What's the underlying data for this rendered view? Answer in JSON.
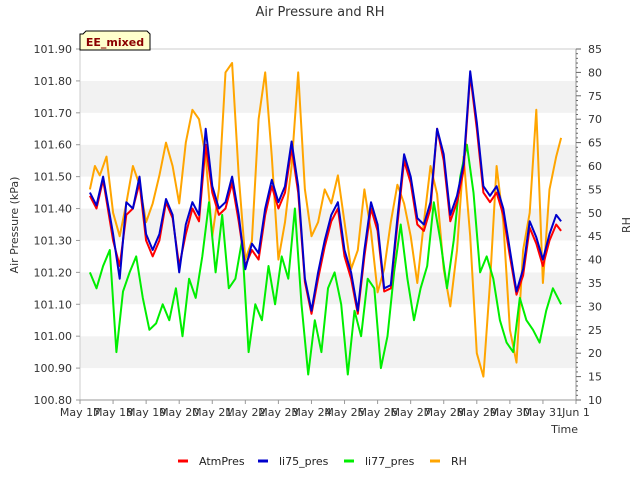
{
  "chart_data": {
    "type": "line",
    "title": "Air Pressure and RH",
    "xlabel": "Time",
    "ylabel": "Air Pressure (kPa)",
    "y2label": "RH",
    "badge": "EE_mixed",
    "xlim": [
      0,
      15
    ],
    "ylim": [
      100.8,
      101.9
    ],
    "y2lim": [
      10,
      85
    ],
    "x_ticks": [
      "May 17",
      "May 18",
      "May 19",
      "May 20",
      "May 21",
      "May 22",
      "May 23",
      "May 24",
      "May 25",
      "May 26",
      "May 27",
      "May 28",
      "May 29",
      "May 30",
      "May 31",
      "Jun 1"
    ],
    "y_ticks": [
      "100.80",
      "100.90",
      "101.00",
      "101.10",
      "101.20",
      "101.30",
      "101.40",
      "101.50",
      "101.60",
      "101.70",
      "101.80",
      "101.90"
    ],
    "y2_ticks": [
      "10",
      "15",
      "20",
      "25",
      "30",
      "35",
      "40",
      "45",
      "50",
      "55",
      "60",
      "65",
      "70",
      "75",
      "80",
      "85"
    ],
    "grid": "alternating horizontal bands",
    "legend_position": "bottom",
    "x_note": "x values are days after May 17 00:00",
    "series": [
      {
        "name": "AtmPres",
        "color": "#ff0000",
        "axis": "left",
        "x": [
          0.3,
          0.5,
          0.7,
          1.0,
          1.2,
          1.4,
          1.6,
          1.8,
          2.0,
          2.2,
          2.4,
          2.6,
          2.8,
          3.0,
          3.2,
          3.4,
          3.6,
          3.8,
          4.0,
          4.2,
          4.4,
          4.6,
          4.8,
          5.0,
          5.2,
          5.4,
          5.6,
          5.8,
          6.0,
          6.2,
          6.4,
          6.6,
          6.8,
          7.0,
          7.2,
          7.4,
          7.6,
          7.8,
          8.0,
          8.2,
          8.4,
          8.6,
          8.8,
          9.0,
          9.2,
          9.4,
          9.6,
          9.8,
          10.0,
          10.2,
          10.4,
          10.6,
          10.8,
          11.0,
          11.2,
          11.4,
          11.6,
          11.8,
          12.0,
          12.2,
          12.4,
          12.6,
          12.8,
          13.0,
          13.2,
          13.4,
          13.6,
          13.8,
          14.0,
          14.2,
          14.4,
          14.55
        ],
        "y": [
          101.44,
          101.4,
          101.49,
          101.3,
          101.22,
          101.38,
          101.4,
          101.48,
          101.3,
          101.25,
          101.3,
          101.42,
          101.37,
          101.22,
          101.32,
          101.4,
          101.36,
          101.6,
          101.45,
          101.38,
          101.4,
          101.48,
          101.36,
          101.22,
          101.27,
          101.24,
          101.38,
          101.47,
          101.4,
          101.45,
          101.59,
          101.45,
          101.17,
          101.07,
          101.18,
          101.28,
          101.36,
          101.4,
          101.25,
          101.18,
          101.07,
          101.25,
          101.4,
          101.33,
          101.14,
          101.15,
          101.35,
          101.55,
          101.48,
          101.35,
          101.33,
          101.4,
          101.65,
          101.55,
          101.36,
          101.42,
          101.52,
          101.82,
          101.65,
          101.45,
          101.42,
          101.45,
          101.38,
          101.25,
          101.13,
          101.19,
          101.34,
          101.29,
          101.22,
          101.3,
          101.35,
          101.33
        ]
      },
      {
        "name": "li75_pres",
        "color": "#0000cc",
        "axis": "left",
        "x": [
          0.3,
          0.5,
          0.7,
          1.0,
          1.2,
          1.4,
          1.6,
          1.8,
          2.0,
          2.2,
          2.4,
          2.6,
          2.8,
          3.0,
          3.2,
          3.4,
          3.6,
          3.8,
          4.0,
          4.2,
          4.4,
          4.6,
          4.8,
          5.0,
          5.2,
          5.4,
          5.6,
          5.8,
          6.0,
          6.2,
          6.4,
          6.6,
          6.8,
          7.0,
          7.2,
          7.4,
          7.6,
          7.8,
          8.0,
          8.2,
          8.4,
          8.6,
          8.8,
          9.0,
          9.2,
          9.4,
          9.6,
          9.8,
          10.0,
          10.2,
          10.4,
          10.6,
          10.8,
          11.0,
          11.2,
          11.4,
          11.6,
          11.8,
          12.0,
          12.2,
          12.4,
          12.6,
          12.8,
          13.0,
          13.2,
          13.4,
          13.6,
          13.8,
          14.0,
          14.2,
          14.4,
          14.55
        ],
        "y": [
          101.45,
          101.41,
          101.5,
          101.32,
          101.18,
          101.42,
          101.4,
          101.5,
          101.32,
          101.27,
          101.32,
          101.43,
          101.38,
          101.2,
          101.35,
          101.42,
          101.38,
          101.65,
          101.47,
          101.4,
          101.42,
          101.5,
          101.38,
          101.21,
          101.29,
          101.26,
          101.4,
          101.49,
          101.42,
          101.47,
          101.61,
          101.47,
          101.18,
          101.08,
          101.2,
          101.3,
          101.38,
          101.42,
          101.27,
          101.2,
          101.08,
          101.27,
          101.42,
          101.35,
          101.15,
          101.16,
          101.37,
          101.57,
          101.5,
          101.37,
          101.35,
          101.42,
          101.65,
          101.57,
          101.38,
          101.44,
          101.54,
          101.83,
          101.67,
          101.47,
          101.44,
          101.47,
          101.4,
          101.27,
          101.14,
          101.21,
          101.36,
          101.31,
          101.24,
          101.32,
          101.38,
          101.36
        ]
      },
      {
        "name": "li77_pres",
        "color": "#00ee00",
        "axis": "left",
        "x": [
          0.3,
          0.5,
          0.7,
          0.9,
          1.1,
          1.3,
          1.5,
          1.7,
          1.9,
          2.1,
          2.3,
          2.5,
          2.7,
          2.9,
          3.1,
          3.3,
          3.5,
          3.7,
          3.9,
          4.1,
          4.3,
          4.5,
          4.7,
          4.9,
          5.1,
          5.3,
          5.5,
          5.7,
          5.9,
          6.1,
          6.3,
          6.5,
          6.7,
          6.9,
          7.1,
          7.3,
          7.5,
          7.7,
          7.9,
          8.1,
          8.3,
          8.5,
          8.7,
          8.9,
          9.1,
          9.3,
          9.5,
          9.7,
          9.9,
          10.1,
          10.3,
          10.5,
          10.7,
          10.9,
          11.1,
          11.3,
          11.5,
          11.7,
          11.9,
          12.1,
          12.3,
          12.5,
          12.7,
          12.9,
          13.1,
          13.3,
          13.5,
          13.7,
          13.9,
          14.1,
          14.3,
          14.55
        ],
        "y": [
          101.2,
          101.15,
          101.22,
          101.27,
          100.95,
          101.14,
          101.2,
          101.25,
          101.12,
          101.02,
          101.04,
          101.1,
          101.05,
          101.15,
          101.0,
          101.18,
          101.12,
          101.25,
          101.42,
          101.2,
          101.38,
          101.15,
          101.18,
          101.3,
          100.95,
          101.1,
          101.05,
          101.22,
          101.1,
          101.25,
          101.18,
          101.4,
          101.1,
          100.88,
          101.05,
          100.95,
          101.15,
          101.2,
          101.1,
          100.88,
          101.08,
          101.0,
          101.18,
          101.15,
          100.9,
          101.0,
          101.2,
          101.35,
          101.18,
          101.05,
          101.15,
          101.22,
          101.42,
          101.3,
          101.15,
          101.3,
          101.5,
          101.6,
          101.45,
          101.2,
          101.25,
          101.18,
          101.05,
          100.98,
          100.95,
          101.12,
          101.05,
          101.02,
          100.98,
          101.08,
          101.15,
          101.1
        ]
      },
      {
        "name": "RH",
        "color": "#ffa500",
        "axis": "right",
        "x": [
          0.3,
          0.45,
          0.6,
          0.8,
          1.0,
          1.2,
          1.4,
          1.6,
          1.8,
          2.0,
          2.2,
          2.4,
          2.6,
          2.8,
          3.0,
          3.2,
          3.4,
          3.6,
          3.8,
          4.0,
          4.2,
          4.4,
          4.6,
          4.8,
          5.0,
          5.2,
          5.4,
          5.6,
          5.8,
          6.0,
          6.2,
          6.4,
          6.6,
          6.8,
          7.0,
          7.2,
          7.4,
          7.6,
          7.8,
          8.0,
          8.2,
          8.4,
          8.6,
          8.8,
          9.0,
          9.2,
          9.4,
          9.6,
          9.8,
          10.0,
          10.2,
          10.4,
          10.6,
          10.8,
          11.0,
          11.2,
          11.4,
          11.6,
          11.8,
          12.0,
          12.2,
          12.4,
          12.6,
          12.8,
          13.0,
          13.2,
          13.4,
          13.6,
          13.8,
          14.0,
          14.2,
          14.4,
          14.55
        ],
        "y": [
          55,
          60,
          58,
          62,
          50,
          45,
          52,
          60,
          56,
          48,
          52,
          58,
          65,
          60,
          52,
          65,
          72,
          70,
          62,
          45,
          55,
          80,
          82,
          58,
          40,
          44,
          70,
          80,
          62,
          40,
          48,
          60,
          80,
          55,
          45,
          48,
          55,
          52,
          58,
          48,
          38,
          42,
          55,
          46,
          33,
          38,
          48,
          56,
          52,
          45,
          35,
          48,
          60,
          54,
          38,
          30,
          42,
          62,
          45,
          20,
          15,
          35,
          60,
          48,
          25,
          18,
          42,
          50,
          72,
          35,
          55,
          62,
          66
        ]
      }
    ]
  }
}
